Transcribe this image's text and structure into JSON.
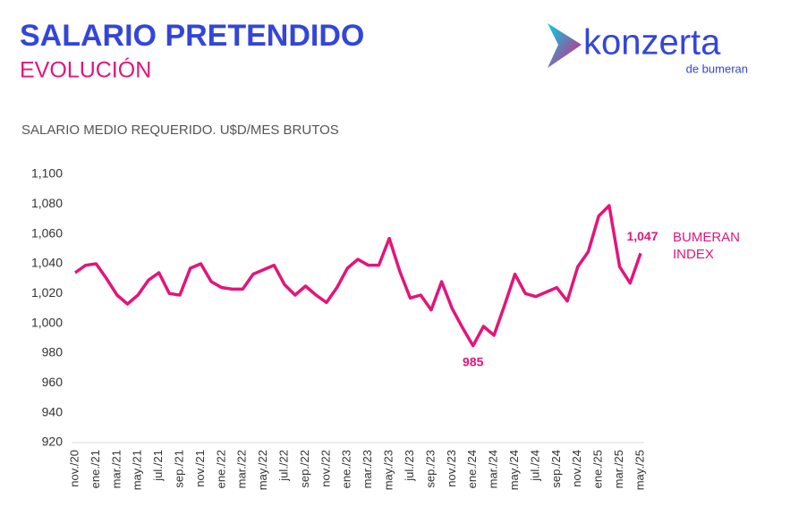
{
  "header": {
    "title": "SALARIO PRETENDIDO",
    "subtitle": "EVOLUCIÓN"
  },
  "logo": {
    "brand": "konzerta",
    "tagline": "de bumeran"
  },
  "chart_data": {
    "type": "line",
    "y_axis_label": "SALARIO MEDIO REQUERIDO. U$D/MES BRUTOS",
    "categories": [
      "nov./20",
      null,
      "ene./21",
      null,
      "mar./21",
      null,
      "may./21",
      null,
      "jul./21",
      null,
      "sep./21",
      null,
      "nov./21",
      null,
      "ene./22",
      null,
      "mar./22",
      null,
      "may./22",
      null,
      "jul./22",
      null,
      "sep./22",
      null,
      "nov./22",
      null,
      "ene./23",
      null,
      "mar./23",
      null,
      "may./23",
      null,
      "jul./23",
      null,
      "sep./23",
      null,
      "nov./23",
      null,
      "ene./24",
      null,
      "mar./24",
      null,
      "may./24",
      null,
      "jul./24",
      null,
      "sep./24",
      null,
      "nov./24",
      null,
      "ene./25",
      null,
      "mar./25",
      null,
      "may./25"
    ],
    "series": [
      {
        "name": "BUMERAN INDEX",
        "color": "#e3157a",
        "values": [
          1034,
          1039,
          1040,
          1030,
          1019,
          1013,
          1019,
          1029,
          1034,
          1020,
          1019,
          1037,
          1040,
          1028,
          1024,
          1023,
          1023,
          1033,
          1036,
          1039,
          1026,
          1019,
          1025,
          1019,
          1014,
          1024,
          1037,
          1043,
          1039,
          1039,
          1057,
          1035,
          1017,
          1019,
          1009,
          1028,
          1010,
          997,
          985,
          998,
          992,
          1012,
          1033,
          1020,
          1018,
          1021,
          1024,
          1015,
          1038,
          1048,
          1072,
          1079,
          1038,
          1027,
          1047
        ],
        "value_labels": [
          null,
          null,
          null,
          null,
          null,
          null,
          null,
          null,
          null,
          null,
          null,
          null,
          null,
          null,
          null,
          null,
          null,
          null,
          null,
          null,
          null,
          null,
          null,
          null,
          null,
          null,
          null,
          null,
          null,
          null,
          null,
          null,
          null,
          null,
          null,
          null,
          null,
          null,
          "985",
          null,
          null,
          null,
          null,
          null,
          null,
          null,
          null,
          null,
          null,
          null,
          null,
          null,
          null,
          null,
          "1,047"
        ]
      }
    ],
    "ylim": [
      920,
      1100
    ],
    "yticks": [
      920,
      940,
      960,
      980,
      {
        "value": 1000,
        "label": "1,000"
      },
      {
        "value": 1020,
        "label": "1,020"
      },
      {
        "value": 1040,
        "label": "1,040"
      },
      {
        "value": 1060,
        "label": "1,060"
      },
      {
        "value": 1080,
        "label": "1,080"
      },
      {
        "value": 1100,
        "label": "1,100"
      }
    ],
    "grid": false
  }
}
